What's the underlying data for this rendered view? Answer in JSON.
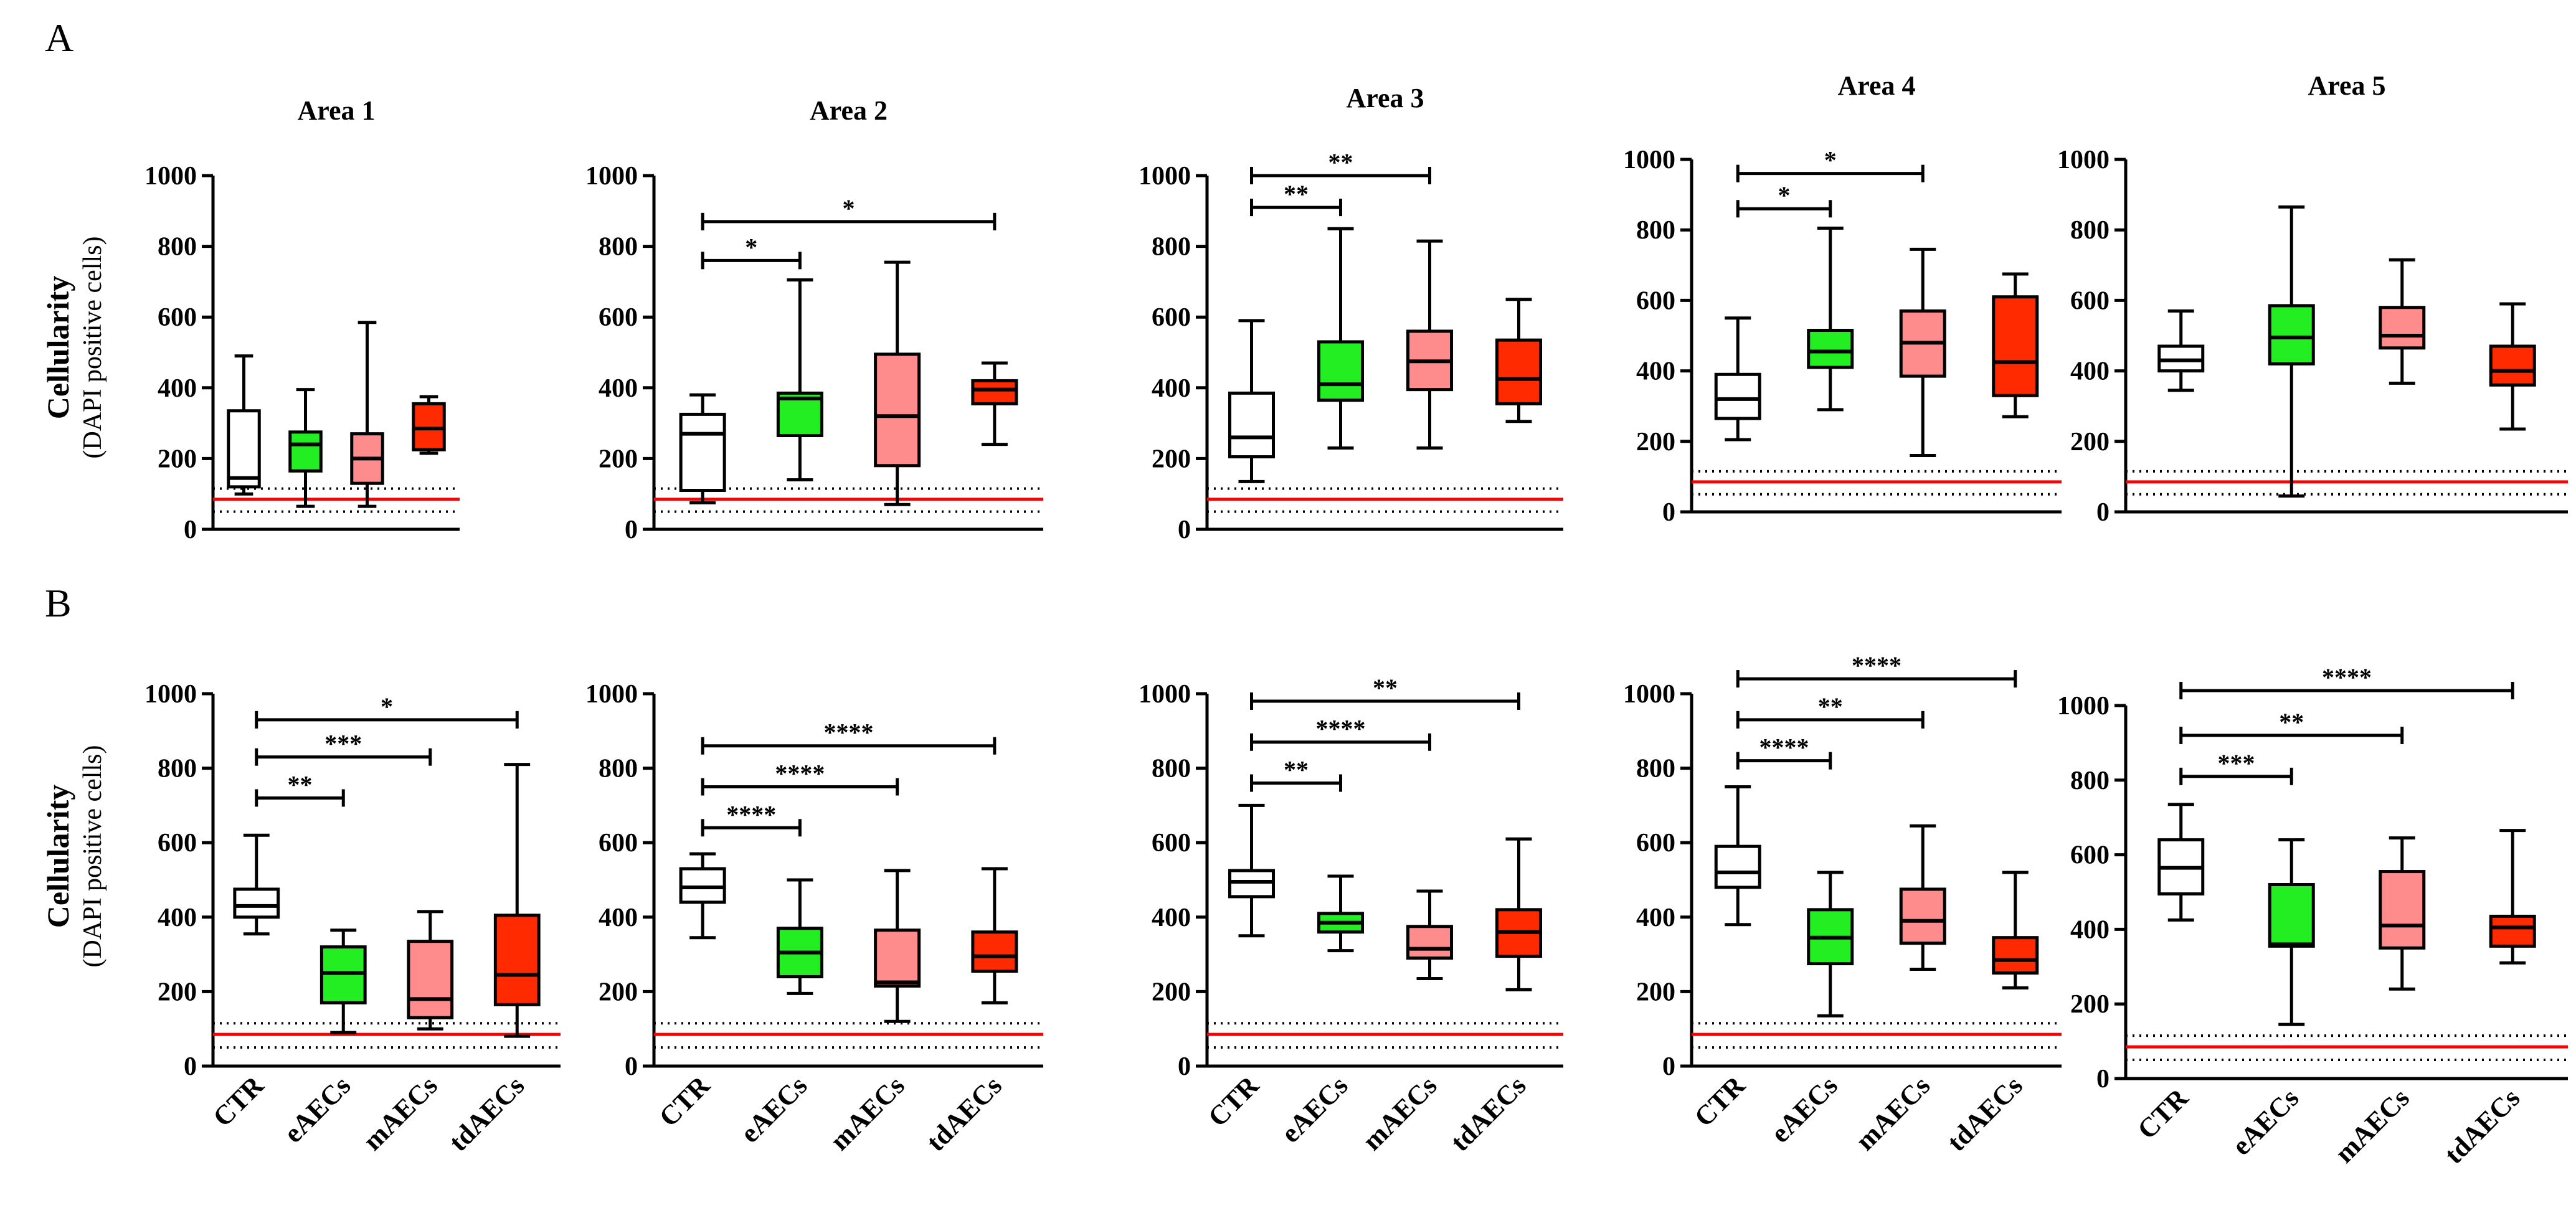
{
  "panel_labels": [
    "A",
    "B"
  ],
  "y_axis": {
    "title": "Cellularity",
    "subtitle": "(DAPI positive cells)"
  },
  "colors": {
    "CTR": "#ffffff",
    "eAECs": "#22ee22",
    "mAECs": "#ff8c8c",
    "tdAECs": "#ff2a00",
    "threshold_line": "#ff0000",
    "bound_lines": "#000000"
  },
  "chart_data": [
    {
      "type": "boxplot",
      "row": "A",
      "title": "Area 1",
      "categories": [
        "CTR",
        "eAECs",
        "mAECs",
        "tdAECs"
      ],
      "ylim": [
        0,
        1000
      ],
      "yticks": [
        0,
        200,
        400,
        600,
        800,
        1000
      ],
      "reference_lines": {
        "red": 85,
        "dotted": [
          50,
          115
        ]
      },
      "boxes": [
        {
          "min": 100,
          "q1": 120,
          "median": 145,
          "q3": 335,
          "max": 490
        },
        {
          "min": 65,
          "q1": 165,
          "median": 240,
          "q3": 275,
          "max": 395
        },
        {
          "min": 65,
          "q1": 130,
          "median": 200,
          "q3": 270,
          "max": 585
        },
        {
          "min": 215,
          "q1": 225,
          "median": 285,
          "q3": 355,
          "max": 375
        }
      ],
      "significance": []
    },
    {
      "type": "boxplot",
      "row": "A",
      "title": "Area 2",
      "categories": [
        "CTR",
        "eAECs",
        "mAECs",
        "tdAECs"
      ],
      "ylim": [
        0,
        1000
      ],
      "yticks": [
        0,
        200,
        400,
        600,
        800,
        1000
      ],
      "reference_lines": {
        "red": 85,
        "dotted": [
          50,
          115
        ]
      },
      "boxes": [
        {
          "min": 75,
          "q1": 110,
          "median": 270,
          "q3": 325,
          "max": 380
        },
        {
          "min": 140,
          "q1": 265,
          "median": 370,
          "q3": 385,
          "max": 705
        },
        {
          "min": 70,
          "q1": 180,
          "median": 320,
          "q3": 495,
          "max": 755
        },
        {
          "min": 240,
          "q1": 355,
          "median": 395,
          "q3": 420,
          "max": 470
        }
      ],
      "significance": [
        {
          "from": 0,
          "to": 1,
          "label": "*",
          "y": 760
        },
        {
          "from": 0,
          "to": 3,
          "label": "*",
          "y": 870
        }
      ]
    },
    {
      "type": "boxplot",
      "row": "A",
      "title": "Area 3",
      "categories": [
        "CTR",
        "eAECs",
        "mAECs",
        "tdAECs"
      ],
      "ylim": [
        0,
        1000
      ],
      "yticks": [
        0,
        200,
        400,
        600,
        800,
        1000
      ],
      "reference_lines": {
        "red": 85,
        "dotted": [
          50,
          115
        ]
      },
      "boxes": [
        {
          "min": 135,
          "q1": 205,
          "median": 260,
          "q3": 385,
          "max": 590
        },
        {
          "min": 230,
          "q1": 365,
          "median": 410,
          "q3": 530,
          "max": 850
        },
        {
          "min": 230,
          "q1": 395,
          "median": 475,
          "q3": 560,
          "max": 815
        },
        {
          "min": 305,
          "q1": 355,
          "median": 425,
          "q3": 535,
          "max": 650
        }
      ],
      "significance": [
        {
          "from": 0,
          "to": 1,
          "label": "**",
          "y": 910
        },
        {
          "from": 0,
          "to": 2,
          "label": "**",
          "y": 1000
        }
      ]
    },
    {
      "type": "boxplot",
      "row": "A",
      "title": "Area 4",
      "categories": [
        "CTR",
        "eAECs",
        "mAECs",
        "tdAECs"
      ],
      "ylim": [
        0,
        1000
      ],
      "yticks": [
        0,
        200,
        400,
        600,
        800,
        1000
      ],
      "reference_lines": {
        "red": 85,
        "dotted": [
          50,
          115
        ]
      },
      "boxes": [
        {
          "min": 205,
          "q1": 265,
          "median": 320,
          "q3": 390,
          "max": 550
        },
        {
          "min": 290,
          "q1": 410,
          "median": 455,
          "q3": 515,
          "max": 805
        },
        {
          "min": 160,
          "q1": 385,
          "median": 480,
          "q3": 570,
          "max": 745
        },
        {
          "min": 270,
          "q1": 330,
          "median": 425,
          "q3": 610,
          "max": 675
        }
      ],
      "significance": [
        {
          "from": 0,
          "to": 1,
          "label": "*",
          "y": 860
        },
        {
          "from": 0,
          "to": 2,
          "label": "*",
          "y": 960
        }
      ]
    },
    {
      "type": "boxplot",
      "row": "A",
      "title": "Area 5",
      "categories": [
        "CTR",
        "eAECs",
        "mAECs",
        "tdAECs"
      ],
      "ylim": [
        0,
        1000
      ],
      "yticks": [
        0,
        200,
        400,
        600,
        800,
        1000
      ],
      "reference_lines": {
        "red": 85,
        "dotted": [
          50,
          115
        ]
      },
      "boxes": [
        {
          "min": 345,
          "q1": 400,
          "median": 430,
          "q3": 470,
          "max": 570
        },
        {
          "min": 45,
          "q1": 420,
          "median": 495,
          "q3": 585,
          "max": 865
        },
        {
          "min": 365,
          "q1": 465,
          "median": 500,
          "q3": 580,
          "max": 715
        },
        {
          "min": 235,
          "q1": 360,
          "median": 400,
          "q3": 470,
          "max": 590
        }
      ],
      "significance": []
    },
    {
      "type": "boxplot",
      "row": "B",
      "title": "",
      "categories": [
        "CTR",
        "eAECs",
        "mAECs",
        "tdAECs"
      ],
      "ylim": [
        0,
        1000
      ],
      "yticks": [
        0,
        200,
        400,
        600,
        800,
        1000
      ],
      "reference_lines": {
        "red": 85,
        "dotted": [
          50,
          115
        ]
      },
      "boxes": [
        {
          "min": 355,
          "q1": 400,
          "median": 430,
          "q3": 475,
          "max": 620
        },
        {
          "min": 90,
          "q1": 170,
          "median": 250,
          "q3": 320,
          "max": 365
        },
        {
          "min": 100,
          "q1": 130,
          "median": 180,
          "q3": 335,
          "max": 415
        },
        {
          "min": 80,
          "q1": 165,
          "median": 245,
          "q3": 405,
          "max": 810
        }
      ],
      "significance": [
        {
          "from": 0,
          "to": 1,
          "label": "**",
          "y": 720
        },
        {
          "from": 0,
          "to": 2,
          "label": "***",
          "y": 830
        },
        {
          "from": 0,
          "to": 3,
          "label": "*",
          "y": 930
        }
      ]
    },
    {
      "type": "boxplot",
      "row": "B",
      "title": "",
      "categories": [
        "CTR",
        "eAECs",
        "mAECs",
        "tdAECs"
      ],
      "ylim": [
        0,
        1000
      ],
      "yticks": [
        0,
        200,
        400,
        600,
        800,
        1000
      ],
      "reference_lines": {
        "red": 85,
        "dotted": [
          50,
          115
        ]
      },
      "boxes": [
        {
          "min": 345,
          "q1": 440,
          "median": 480,
          "q3": 530,
          "max": 570
        },
        {
          "min": 195,
          "q1": 240,
          "median": 305,
          "q3": 370,
          "max": 500
        },
        {
          "min": 120,
          "q1": 215,
          "median": 225,
          "q3": 365,
          "max": 525
        },
        {
          "min": 170,
          "q1": 255,
          "median": 295,
          "q3": 360,
          "max": 530
        }
      ],
      "significance": [
        {
          "from": 0,
          "to": 1,
          "label": "****",
          "y": 640
        },
        {
          "from": 0,
          "to": 2,
          "label": "****",
          "y": 750
        },
        {
          "from": 0,
          "to": 3,
          "label": "****",
          "y": 860
        }
      ]
    },
    {
      "type": "boxplot",
      "row": "B",
      "title": "",
      "categories": [
        "CTR",
        "eAECs",
        "mAECs",
        "tdAECs"
      ],
      "ylim": [
        0,
        1000
      ],
      "yticks": [
        0,
        200,
        400,
        600,
        800,
        1000
      ],
      "reference_lines": {
        "red": 85,
        "dotted": [
          50,
          115
        ]
      },
      "boxes": [
        {
          "min": 350,
          "q1": 455,
          "median": 495,
          "q3": 525,
          "max": 700
        },
        {
          "min": 310,
          "q1": 360,
          "median": 385,
          "q3": 410,
          "max": 510
        },
        {
          "min": 235,
          "q1": 290,
          "median": 315,
          "q3": 375,
          "max": 470
        },
        {
          "min": 205,
          "q1": 295,
          "median": 360,
          "q3": 420,
          "max": 610
        }
      ],
      "significance": [
        {
          "from": 0,
          "to": 1,
          "label": "**",
          "y": 760
        },
        {
          "from": 0,
          "to": 2,
          "label": "****",
          "y": 870
        },
        {
          "from": 0,
          "to": 3,
          "label": "**",
          "y": 980
        }
      ]
    },
    {
      "type": "boxplot",
      "row": "B",
      "title": "",
      "categories": [
        "CTR",
        "eAECs",
        "mAECs",
        "tdAECs"
      ],
      "ylim": [
        0,
        1000
      ],
      "yticks": [
        0,
        200,
        400,
        600,
        800,
        1000
      ],
      "reference_lines": {
        "red": 85,
        "dotted": [
          50,
          115
        ]
      },
      "boxes": [
        {
          "min": 380,
          "q1": 480,
          "median": 520,
          "q3": 590,
          "max": 750
        },
        {
          "min": 135,
          "q1": 275,
          "median": 345,
          "q3": 420,
          "max": 520
        },
        {
          "min": 260,
          "q1": 330,
          "median": 390,
          "q3": 475,
          "max": 645
        },
        {
          "min": 210,
          "q1": 250,
          "median": 285,
          "q3": 345,
          "max": 520
        }
      ],
      "significance": [
        {
          "from": 0,
          "to": 1,
          "label": "****",
          "y": 820
        },
        {
          "from": 0,
          "to": 2,
          "label": "**",
          "y": 930
        },
        {
          "from": 0,
          "to": 3,
          "label": "****",
          "y": 1040
        }
      ]
    },
    {
      "type": "boxplot",
      "row": "B",
      "title": "",
      "categories": [
        "CTR",
        "eAECs",
        "mAECs",
        "tdAECs"
      ],
      "ylim": [
        0,
        1000
      ],
      "yticks": [
        0,
        200,
        400,
        600,
        800,
        1000
      ],
      "reference_lines": {
        "red": 85,
        "dotted": [
          50,
          115
        ]
      },
      "boxes": [
        {
          "min": 425,
          "q1": 495,
          "median": 565,
          "q3": 640,
          "max": 735
        },
        {
          "min": 145,
          "q1": 355,
          "median": 360,
          "q3": 520,
          "max": 640
        },
        {
          "min": 240,
          "q1": 350,
          "median": 410,
          "q3": 555,
          "max": 645
        },
        {
          "min": 310,
          "q1": 355,
          "median": 405,
          "q3": 435,
          "max": 665
        }
      ],
      "significance": [
        {
          "from": 0,
          "to": 1,
          "label": "***",
          "y": 810
        },
        {
          "from": 0,
          "to": 2,
          "label": "**",
          "y": 920
        },
        {
          "from": 0,
          "to": 3,
          "label": "****",
          "y": 1040
        }
      ]
    }
  ]
}
